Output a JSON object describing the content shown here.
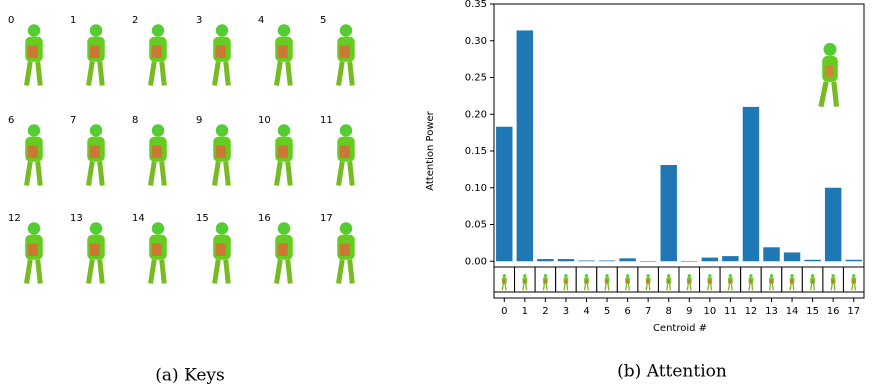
{
  "keys": {
    "labels": [
      "0",
      "1",
      "2",
      "3",
      "4",
      "5",
      "6",
      "7",
      "8",
      "9",
      "10",
      "11",
      "12",
      "13",
      "14",
      "15",
      "16",
      "17"
    ],
    "caption": "(a) Keys"
  },
  "chart_data": {
    "type": "bar",
    "caption": "(b) Attention",
    "x_label": "Centroid #",
    "y_label": "Attention Power",
    "categories": [
      "0",
      "1",
      "2",
      "3",
      "4",
      "5",
      "6",
      "7",
      "8",
      "9",
      "10",
      "11",
      "12",
      "13",
      "14",
      "15",
      "16",
      "17"
    ],
    "values": [
      0.183,
      0.314,
      0.003,
      0.003,
      0.001,
      0.001,
      0.004,
      0.0,
      0.131,
      0.0,
      0.005,
      0.007,
      0.21,
      0.019,
      0.012,
      0.002,
      0.1,
      0.002
    ],
    "color": "#1f77b4",
    "ylim": [
      -0.05,
      0.35
    ],
    "yticks": [
      {
        "value": 0,
        "label": "0.00"
      },
      {
        "value": 0.05,
        "label": "0.05"
      },
      {
        "value": 0.1,
        "label": "0.10"
      },
      {
        "value": 0.15,
        "label": "0.15"
      },
      {
        "value": 0.2,
        "label": "0.20"
      },
      {
        "value": 0.25,
        "label": "0.25"
      },
      {
        "value": 0.3,
        "label": "0.30"
      },
      {
        "value": 0.35,
        "label": "0.35"
      }
    ]
  }
}
